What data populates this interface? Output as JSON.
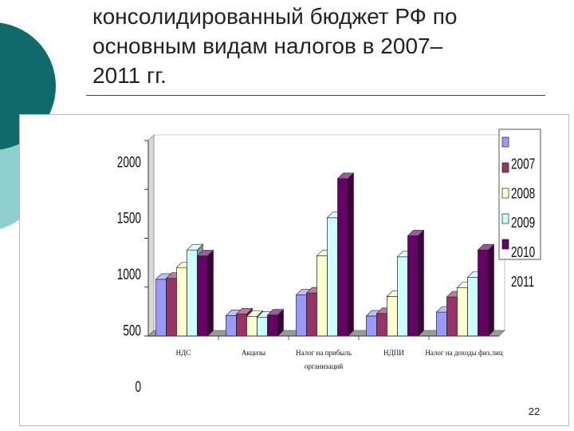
{
  "slide": {
    "title_lines": [
      "консолидированный бюджет РФ по",
      "основным видам налогов в 2007–",
      "2011 гг."
    ],
    "page_number": "22"
  },
  "chart_data": {
    "type": "bar",
    "categories": [
      [
        "НДС"
      ],
      [
        "Акцизы"
      ],
      [
        "Налог на прибыль",
        "организаций"
      ],
      [
        "НДПИ"
      ],
      [
        "Налог на доходы физ.лиц"
      ]
    ],
    "series": [
      {
        "name": "2007",
        "color": "#9999ff",
        "values": [
          580,
          210,
          420,
          205,
          245
        ]
      },
      {
        "name": "2008",
        "color": "#993366",
        "values": [
          590,
          225,
          440,
          230,
          400
        ]
      },
      {
        "name": "2009",
        "color": "#ffffcc",
        "values": [
          700,
          200,
          820,
          405,
          495
        ]
      },
      {
        "name": "2010",
        "color": "#ccffff",
        "values": [
          880,
          190,
          1210,
          810,
          600
        ]
      },
      {
        "name": "2011",
        "color": "#660066",
        "values": [
          820,
          215,
          1610,
          1025,
          880
        ]
      }
    ],
    "yticks": [
      "0",
      "500",
      "1000",
      "1500",
      "2000"
    ],
    "ylim": [
      0,
      2000
    ],
    "grid": false,
    "legend_position": "right",
    "style": "3d-clustered-bar"
  }
}
